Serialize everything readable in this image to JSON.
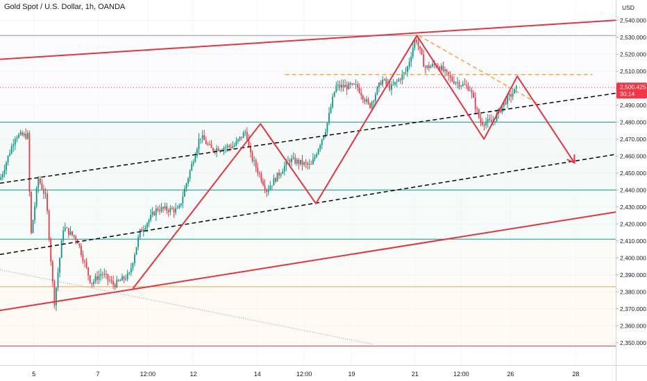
{
  "header": {
    "symbol_title": "Gold Spot / U.S. Dollar, 1h, OANDA"
  },
  "price_axis": {
    "currency_label": "USD"
  },
  "price_tag": {
    "price": "2,500.425",
    "countdown": "30:14",
    "color": "#f23645"
  },
  "chart_data": {
    "type": "candlestick",
    "title": "Gold Spot / U.S. Dollar, 1h, OANDA",
    "ylim": [
      2345,
      2545
    ],
    "y_ticks": [
      "2,350.000",
      "2,360.000",
      "2,370.000",
      "2,380.000",
      "2,390.000",
      "2,400.000",
      "2,410.000",
      "2,420.000",
      "2,430.000",
      "2,440.000",
      "2,450.000",
      "2,460.000",
      "2,470.000",
      "2,480.000",
      "2,490.000",
      "2,500.000",
      "2,510.000",
      "2,520.000",
      "2,530.000",
      "2,540.000"
    ],
    "y_tick_values": [
      2350,
      2360,
      2370,
      2380,
      2390,
      2400,
      2410,
      2420,
      2430,
      2440,
      2450,
      2460,
      2470,
      2480,
      2490,
      2500,
      2510,
      2520,
      2530,
      2540
    ],
    "x_ticks": [
      "5",
      "7",
      "12:00",
      "12",
      "14",
      "12:00",
      "19",
      "21",
      "12:00",
      "26",
      "28"
    ],
    "x_tick_positions": [
      0.055,
      0.159,
      0.24,
      0.314,
      0.418,
      0.494,
      0.571,
      0.674,
      0.749,
      0.829,
      0.935
    ],
    "colors": {
      "up": "#089981",
      "down": "#f23645",
      "pattern": "#e8323c",
      "dashed": "#000000",
      "orange": "#f7a43a"
    },
    "horizontal_levels": [
      {
        "price": 2531,
        "color": "#9598a1"
      },
      {
        "price": 2480,
        "color": "#089981"
      },
      {
        "price": 2440,
        "color": "#089981"
      },
      {
        "price": 2411,
        "color": "#089981"
      },
      {
        "price": 2383,
        "color": "#f7a43a"
      },
      {
        "price": 2348,
        "color": "#e8323c"
      }
    ],
    "current_price": 2500.425,
    "anchors": [
      {
        "t": 0.0,
        "p": 2446
      },
      {
        "t": 0.025,
        "p": 2472
      },
      {
        "t": 0.045,
        "p": 2472
      },
      {
        "t": 0.05,
        "p": 2412
      },
      {
        "t": 0.062,
        "p": 2447
      },
      {
        "t": 0.075,
        "p": 2435
      },
      {
        "t": 0.088,
        "p": 2373
      },
      {
        "t": 0.103,
        "p": 2418
      },
      {
        "t": 0.125,
        "p": 2411
      },
      {
        "t": 0.148,
        "p": 2385
      },
      {
        "t": 0.165,
        "p": 2391
      },
      {
        "t": 0.185,
        "p": 2384
      },
      {
        "t": 0.21,
        "p": 2390
      },
      {
        "t": 0.227,
        "p": 2415
      },
      {
        "t": 0.255,
        "p": 2429
      },
      {
        "t": 0.29,
        "p": 2428
      },
      {
        "t": 0.325,
        "p": 2472
      },
      {
        "t": 0.343,
        "p": 2464
      },
      {
        "t": 0.38,
        "p": 2466
      },
      {
        "t": 0.4,
        "p": 2475
      },
      {
        "t": 0.405,
        "p": 2462
      },
      {
        "t": 0.433,
        "p": 2440
      },
      {
        "t": 0.452,
        "p": 2449
      },
      {
        "t": 0.47,
        "p": 2458
      },
      {
        "t": 0.505,
        "p": 2454
      },
      {
        "t": 0.53,
        "p": 2477
      },
      {
        "t": 0.545,
        "p": 2501
      },
      {
        "t": 0.58,
        "p": 2501
      },
      {
        "t": 0.6,
        "p": 2489
      },
      {
        "t": 0.62,
        "p": 2505
      },
      {
        "t": 0.635,
        "p": 2500
      },
      {
        "t": 0.66,
        "p": 2510
      },
      {
        "t": 0.675,
        "p": 2530
      },
      {
        "t": 0.69,
        "p": 2512
      },
      {
        "t": 0.71,
        "p": 2514
      },
      {
        "t": 0.733,
        "p": 2505
      },
      {
        "t": 0.763,
        "p": 2500
      },
      {
        "t": 0.78,
        "p": 2480
      },
      {
        "t": 0.8,
        "p": 2480
      },
      {
        "t": 0.82,
        "p": 2492
      },
      {
        "t": 0.84,
        "p": 2500
      }
    ],
    "pattern_polyline": [
      {
        "t": 0.216,
        "p": 2382
      },
      {
        "t": 0.423,
        "p": 2479
      },
      {
        "t": 0.513,
        "p": 2432
      },
      {
        "t": 0.677,
        "p": 2531
      },
      {
        "t": 0.786,
        "p": 2470
      },
      {
        "t": 0.84,
        "p": 2507
      },
      {
        "t": 0.933,
        "p": 2456
      }
    ],
    "trendlines": [
      {
        "kind": "red",
        "from": {
          "t": 0.0,
          "p": 2517
        },
        "to": {
          "t": 1.0,
          "p": 2540
        }
      },
      {
        "kind": "red",
        "from": {
          "t": 0.0,
          "p": 2369
        },
        "to": {
          "t": 1.0,
          "p": 2427
        }
      },
      {
        "kind": "dashed",
        "from": {
          "t": 0.0,
          "p": 2444
        },
        "to": {
          "t": 1.0,
          "p": 2497
        }
      },
      {
        "kind": "dashed",
        "from": {
          "t": 0.0,
          "p": 2402
        },
        "to": {
          "t": 1.0,
          "p": 2461
        }
      },
      {
        "kind": "orange",
        "from": {
          "t": 0.463,
          "p": 2508
        },
        "to": {
          "t": 0.962,
          "p": 2508
        }
      },
      {
        "kind": "orange",
        "from": {
          "t": 0.68,
          "p": 2531
        },
        "to": {
          "t": 0.878,
          "p": 2490
        }
      },
      {
        "kind": "grey",
        "from": {
          "t": 0.0,
          "p": 2393
        },
        "to": {
          "t": 0.607,
          "p": 2349
        }
      }
    ]
  }
}
